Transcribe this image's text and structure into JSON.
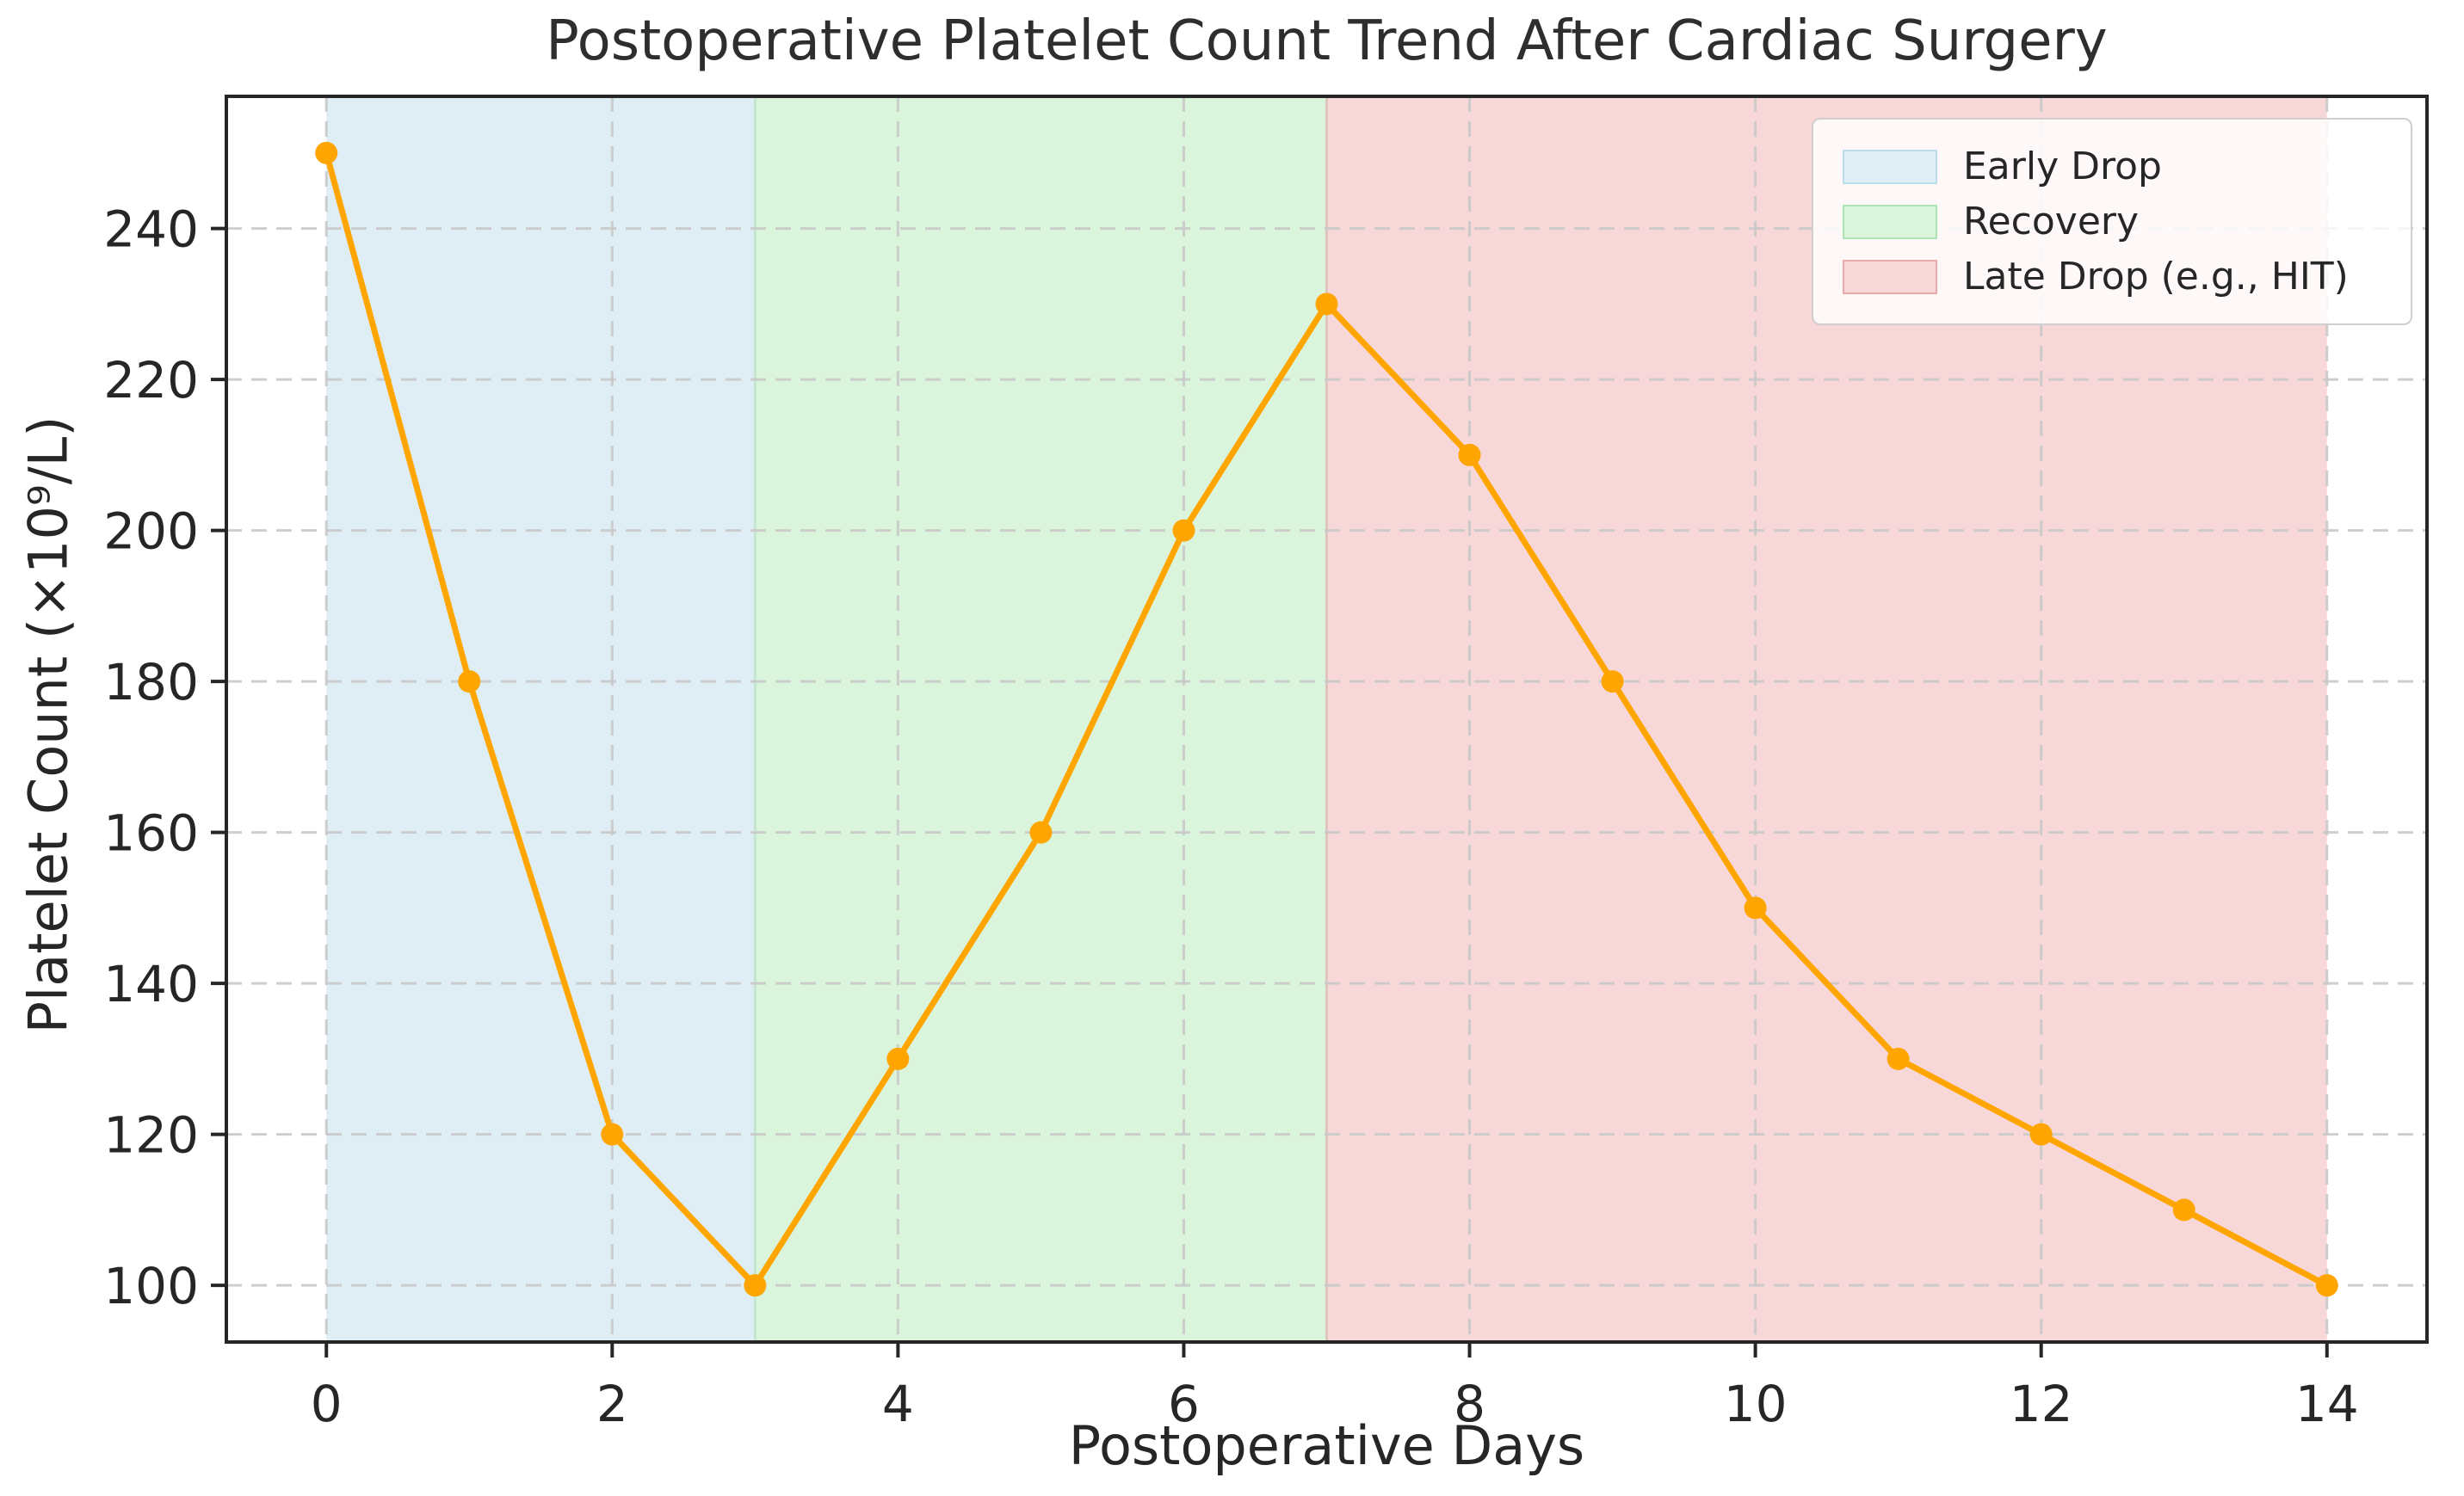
{
  "figure": {
    "title": "Postoperative Platelet Count Trend After Cardiac Surgery",
    "background": "#ffffff",
    "text_color": "#262626"
  },
  "chart_data": {
    "type": "line",
    "title": "Postoperative Platelet Count Trend After Cardiac Surgery",
    "xlabel": "Postoperative Days",
    "ylabel": "Platelet Count (×10⁹/L)",
    "x": [
      0,
      1,
      2,
      3,
      4,
      5,
      6,
      7,
      8,
      9,
      10,
      11,
      12,
      13,
      14
    ],
    "series": [
      {
        "name": "Platelet Count",
        "values": [
          250,
          180,
          120,
          100,
          130,
          160,
          200,
          230,
          210,
          180,
          150,
          130,
          120,
          110,
          100
        ],
        "color": "#FFA500",
        "marker": "circle",
        "line_width": 7,
        "marker_radius": 13
      }
    ],
    "xticks": [
      0,
      2,
      4,
      6,
      8,
      10,
      12,
      14
    ],
    "yticks": [
      100,
      120,
      140,
      160,
      180,
      200,
      220,
      240
    ],
    "xlim": [
      -0.7,
      14.7
    ],
    "ylim": [
      92.5,
      257.5
    ],
    "grid": true,
    "grid_style": {
      "color": "#c9c9c9",
      "dash": "18 11"
    },
    "legend_position": "upper right",
    "regions": [
      {
        "label": "Early Drop",
        "start": 0,
        "end": 3,
        "fill": "#dfeef4",
        "edge": "#c2e6cf",
        "swatch_border": "#badcec"
      },
      {
        "label": "Recovery",
        "start": 3,
        "end": 7,
        "fill": "#daf5dc",
        "edge": "#dcc6bd",
        "swatch_border": "#abe3b3"
      },
      {
        "label": "Late Drop (e.g., HIT)",
        "start": 7,
        "end": 14,
        "fill": "#f8d7d8",
        "edge": null,
        "swatch_border": "#eaabad"
      }
    ],
    "spine_color": "#262626",
    "tick_label_size": 58
  }
}
